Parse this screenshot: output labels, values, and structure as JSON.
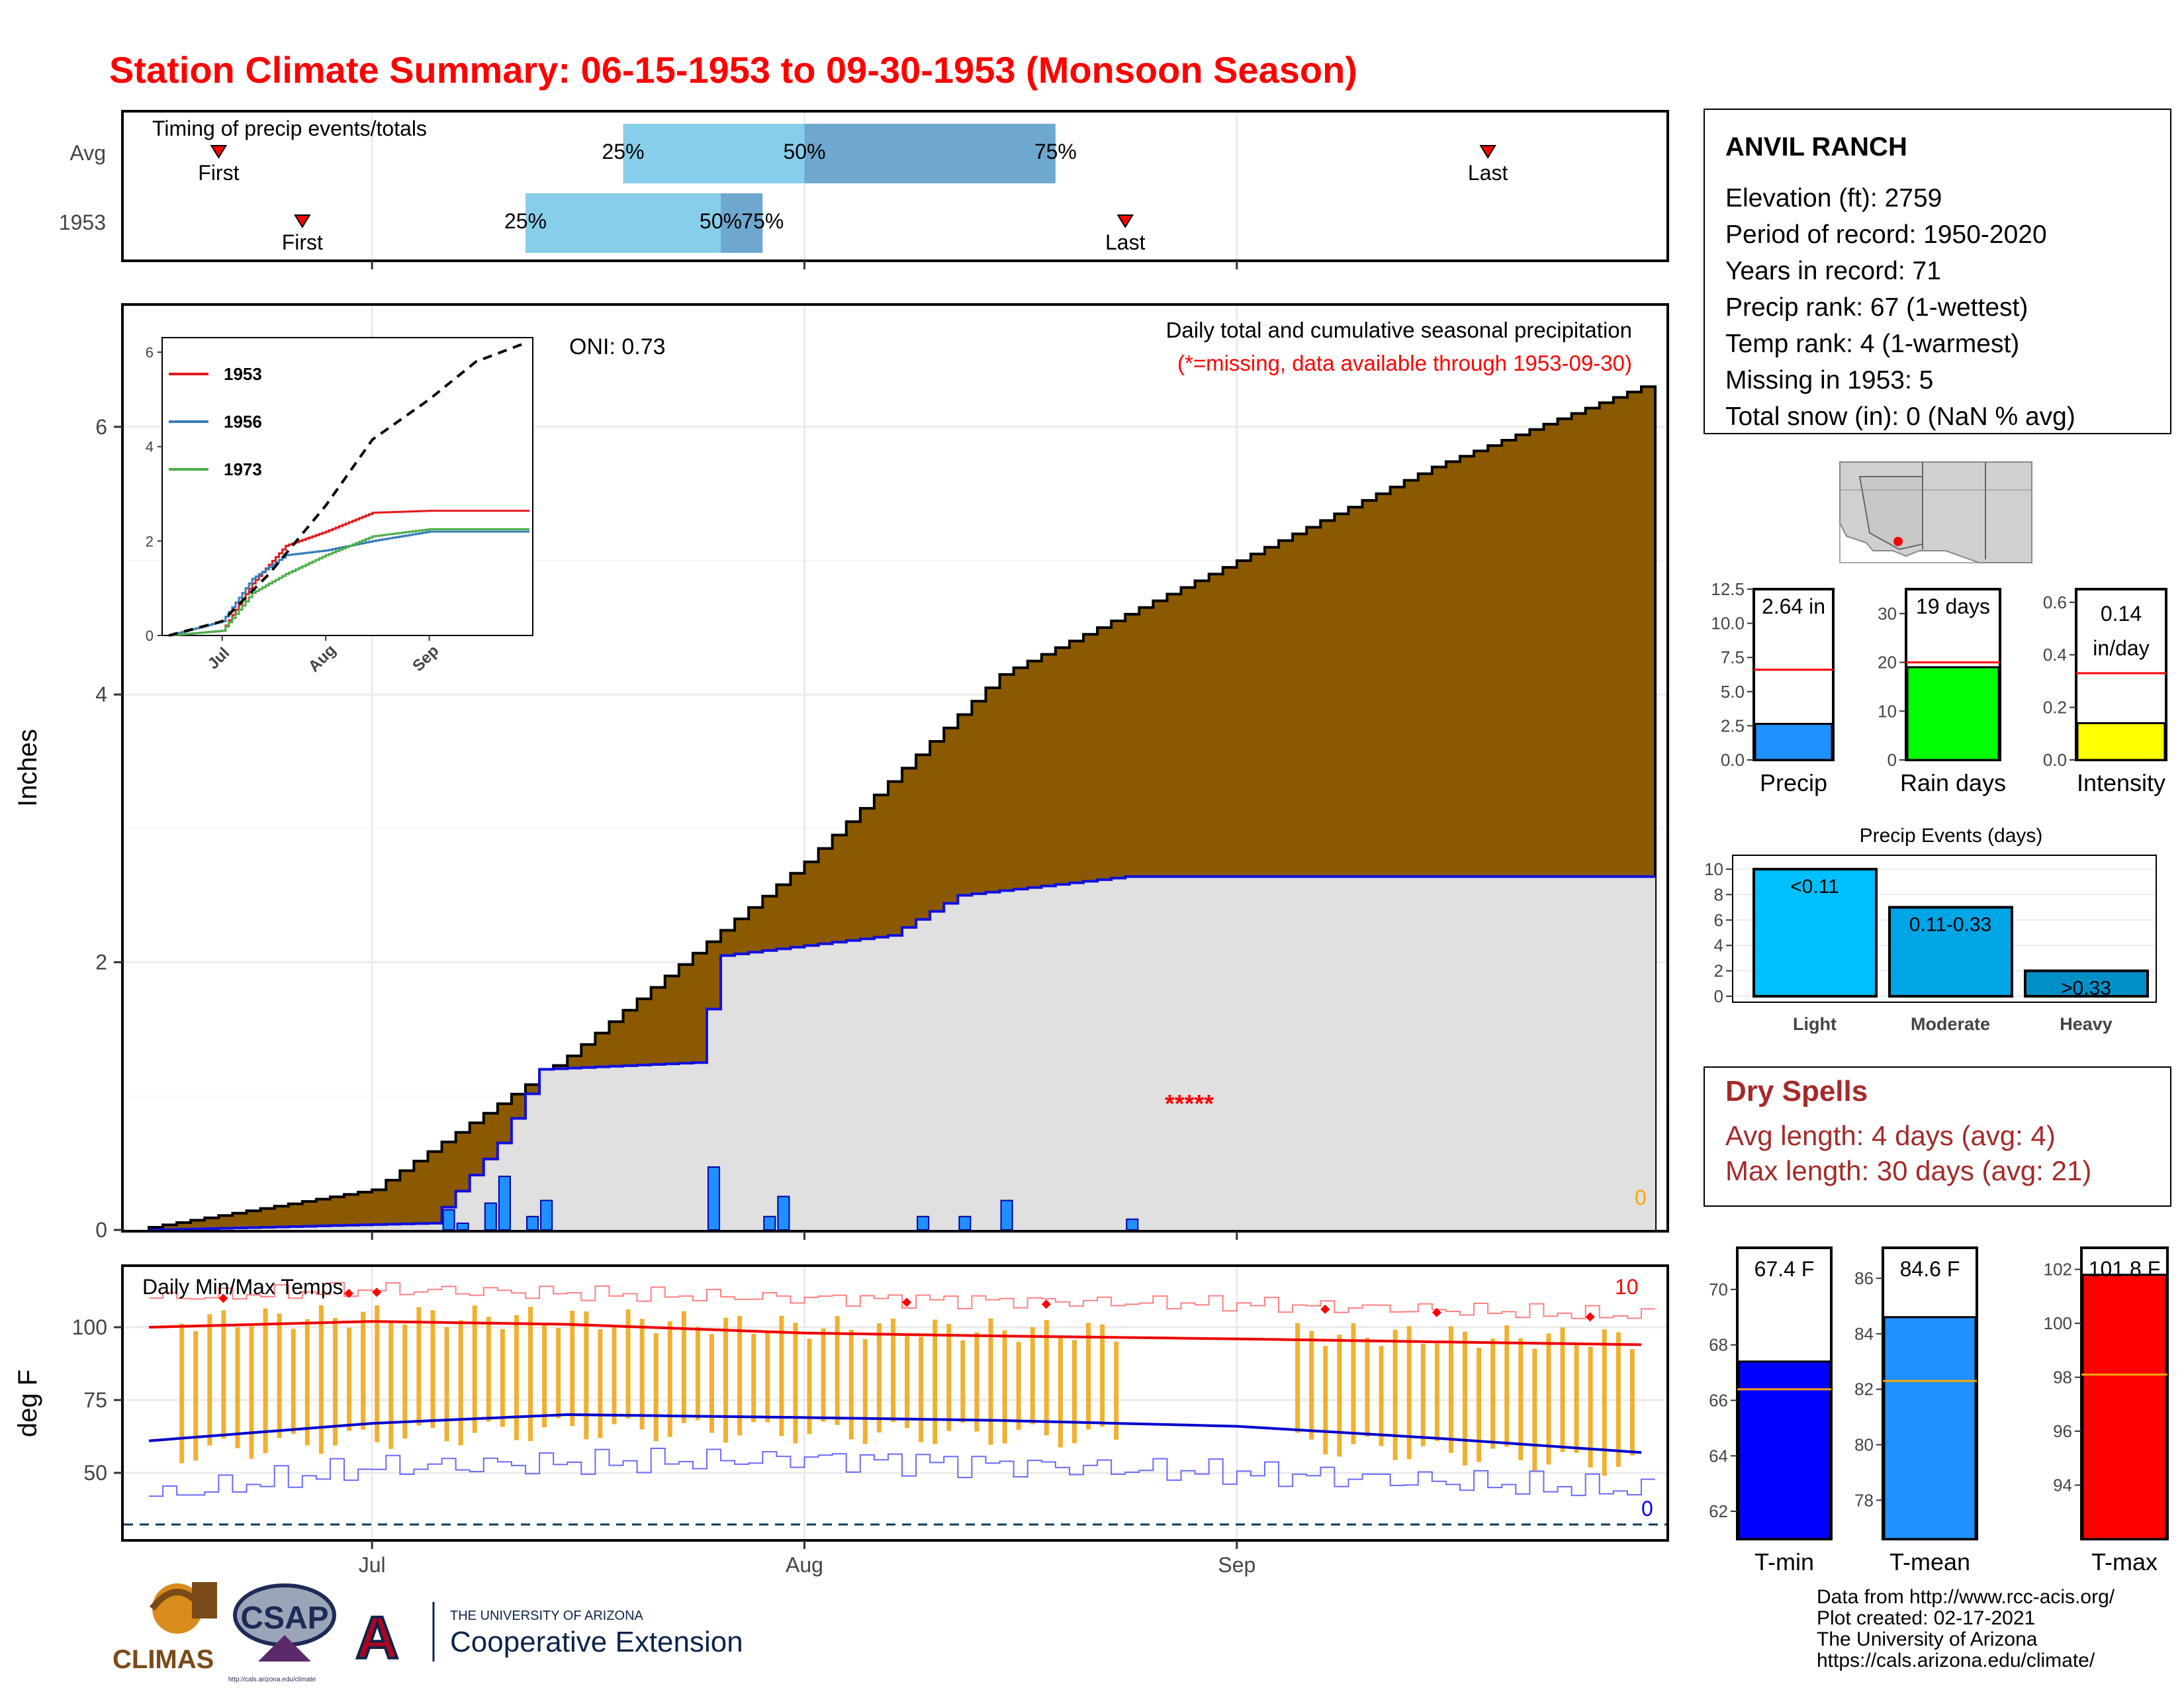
{
  "title": "Station Climate Summary: 06-15-1953 to 09-30-1953 (Monsoon Season)",
  "timing": {
    "label": "Timing of precip events/totals",
    "rows": [
      {
        "name": "Avg",
        "first": "Jun 20",
        "last": "Sep 19",
        "p25": "Jul 19",
        "p50": "Aug 1",
        "p75": "Aug 19"
      },
      {
        "name": "1953",
        "first": "Jun 26",
        "last": "Aug 24",
        "p25": "Jul 12",
        "p50": "Jul 26",
        "p75": "Jul 29"
      }
    ],
    "labels": {
      "first": "First",
      "last": "Last",
      "p25": "25%",
      "p50": "50%",
      "p75": "75%"
    }
  },
  "main_chart": {
    "ylabel": "Inches",
    "oni": "ONI: 0.73",
    "note": "Daily total and cumulative seasonal precipitation",
    "note_missing": "(*=missing, data available through 1953-09-30)",
    "missing_marker": "*****",
    "count_label": "0",
    "colors": {
      "avg_fill": "#8B5A00",
      "obs_fill": "#e0e0e0",
      "obs_line": "#1010e0",
      "daily_bar": "#1e90ff"
    }
  },
  "inset": {
    "legend": [
      "1953",
      "1956",
      "1973"
    ],
    "colors": {
      "1953": "#e41a1c",
      "1956": "#377eb8",
      "1973": "#4daf4a"
    }
  },
  "temp_chart": {
    "label": "Daily Min/Max Temps",
    "ylabel": "deg F",
    "count_high": "10",
    "count_low": "0"
  },
  "x_ticks": [
    "Jul",
    "Aug",
    "Sep"
  ],
  "station": {
    "name": "ANVIL RANCH",
    "lines": [
      "Elevation (ft): 2759",
      "Period of record: 1950-2020",
      "Years in record: 71",
      "Precip rank: 67 (1-wettest)",
      "Temp rank: 4 (1-warmest)",
      "Missing in 1953: 5",
      "Total snow (in): 0 (NaN % avg)"
    ]
  },
  "mini_bars": [
    {
      "label": "Precip",
      "value_text": "2.64 in",
      "value": 2.64,
      "avg": 6.6,
      "ylim": [
        0,
        12.5
      ],
      "ticks": [
        "0.0",
        "2.5",
        "5.0",
        "7.5",
        "10.0",
        "12.5"
      ],
      "color": "#1e90ff"
    },
    {
      "label": "Rain days",
      "value_text": "19 days",
      "value": 19,
      "avg": 20,
      "ylim": [
        0,
        35
      ],
      "ticks": [
        "0",
        "10",
        "20",
        "30"
      ],
      "color": "#00ff00"
    },
    {
      "label": "Intensity",
      "value_text": "0.14 in/day",
      "value_line1": "0.14",
      "value_line2": "in/day",
      "value": 0.14,
      "avg": 0.33,
      "ylim": [
        0,
        0.65
      ],
      "ticks": [
        "0.0",
        "0.2",
        "0.4",
        "0.6"
      ],
      "color": "#ffff00"
    }
  ],
  "precip_events": {
    "title": "Precip Events (days)",
    "categories": [
      "Light",
      "Moderate",
      "Heavy"
    ],
    "bin_labels": [
      "<0.11",
      "0.11-0.33",
      ">0.33"
    ],
    "values": [
      10,
      7,
      2
    ],
    "colors": [
      "#00bfff",
      "#00a5e6",
      "#0090c8"
    ],
    "ticks": [
      "0",
      "2",
      "4",
      "6",
      "8",
      "10"
    ]
  },
  "dry_spells": {
    "title": "Dry Spells",
    "avg": "Avg length: 4 days (avg: 4)",
    "max": "Max length: 30 days (avg: 21)"
  },
  "temp_bars": [
    {
      "label": "T-min",
      "value_text": "67.4 F",
      "value": 67.4,
      "avg": 66.4,
      "ylim": [
        61,
        71.5
      ],
      "ticks": [
        "62",
        "64",
        "66",
        "68",
        "70"
      ],
      "color": "#0000ff"
    },
    {
      "label": "T-mean",
      "value_text": "84.6 F",
      "value": 84.6,
      "avg": 82.3,
      "ylim": [
        76.6,
        87.1
      ],
      "ticks": [
        "78",
        "80",
        "82",
        "84",
        "86"
      ],
      "color": "#1e90ff"
    },
    {
      "label": "T-max",
      "value_text": "101.8 F",
      "value": 101.8,
      "avg": 98.1,
      "ylim": [
        92,
        102.8
      ],
      "ticks": [
        "94",
        "96",
        "98",
        "100",
        "102"
      ],
      "color": "#ff0000"
    }
  ],
  "footer": {
    "lines": [
      "Data from http://www.rcc-acis.org/",
      "Plot created: 02-17-2021",
      "The University of Arizona",
      "https://cals.arizona.edu/climate/"
    ],
    "logo_climas": "CLIMAS",
    "logo_csap": "CSAP",
    "logo_csap_url": "http://cals.arizona.edu/climate",
    "logo_ua_small": "THE UNIVERSITY OF ARIZONA",
    "logo_ua_big": "Cooperative Extension",
    "logo_ua_letter": "A"
  },
  "chart_data": [
    {
      "type": "area",
      "title": "Daily total and cumulative seasonal precipitation",
      "xlabel": "",
      "ylabel": "Inches",
      "ylim": [
        0,
        7
      ],
      "x_range": [
        "1953-06-15",
        "1953-09-30"
      ],
      "series": [
        {
          "name": "cumulative average",
          "x": [
            "06-15",
            "07-01",
            "07-15",
            "08-01",
            "08-15",
            "09-01",
            "09-15",
            "09-30"
          ],
          "values": [
            0.02,
            0.3,
            1.3,
            2.75,
            4.15,
            5.0,
            5.7,
            6.3
          ]
        },
        {
          "name": "cumulative 1953",
          "x": [
            "06-15",
            "07-05",
            "07-10",
            "07-13",
            "07-24",
            "07-26",
            "08-07",
            "08-12",
            "08-24",
            "09-30"
          ],
          "values": [
            0,
            0.05,
            0.65,
            1.2,
            1.25,
            2.05,
            2.2,
            2.5,
            2.64,
            2.64
          ]
        },
        {
          "name": "daily 1953",
          "x": [
            "07-06",
            "07-07",
            "07-09",
            "07-10",
            "07-12",
            "07-13",
            "07-25",
            "07-29",
            "07-30",
            "08-09",
            "08-12",
            "08-15",
            "08-24"
          ],
          "values": [
            0.15,
            0.05,
            0.2,
            0.4,
            0.1,
            0.22,
            0.47,
            0.1,
            0.25,
            0.1,
            0.1,
            0.22,
            0.08
          ]
        }
      ]
    },
    {
      "type": "line",
      "title": "",
      "xlabel": "",
      "ylabel": "",
      "ylim": [
        0,
        6.2
      ],
      "series": [
        {
          "name": "1953",
          "x": [
            "06-15",
            "07-01",
            "07-10",
            "07-20",
            "08-01",
            "08-15",
            "09-01",
            "09-30"
          ],
          "values": [
            0,
            0.1,
            1.1,
            1.9,
            2.2,
            2.6,
            2.64,
            2.64
          ]
        },
        {
          "name": "1956",
          "x": [
            "06-15",
            "07-01",
            "07-10",
            "07-20",
            "08-01",
            "08-15",
            "09-01",
            "09-30"
          ],
          "values": [
            0,
            0.3,
            1.2,
            1.7,
            1.8,
            2.0,
            2.2,
            2.2
          ]
        },
        {
          "name": "1973",
          "x": [
            "06-15",
            "07-01",
            "07-10",
            "07-20",
            "08-01",
            "08-15",
            "09-01",
            "09-30"
          ],
          "values": [
            0,
            0.1,
            0.9,
            1.3,
            1.7,
            2.1,
            2.25,
            2.25
          ]
        },
        {
          "name": "average",
          "x": [
            "06-15",
            "07-01",
            "07-15",
            "08-01",
            "08-15",
            "09-01",
            "09-15",
            "09-30"
          ],
          "values": [
            0,
            0.3,
            1.3,
            2.75,
            4.15,
            5.0,
            5.8,
            6.2
          ]
        }
      ]
    },
    {
      "type": "line",
      "title": "Daily Min/Max Temps",
      "xlabel": "",
      "ylabel": "deg F",
      "ylim": [
        32,
        120
      ],
      "series": [
        {
          "name": "avg max",
          "x": [
            "06-15",
            "07-01",
            "07-15",
            "08-01",
            "08-15",
            "09-01",
            "09-15",
            "09-30"
          ],
          "values": [
            100,
            102,
            101,
            98,
            97,
            96,
            95,
            94
          ]
        },
        {
          "name": "avg min",
          "x": [
            "06-15",
            "07-01",
            "07-15",
            "08-01",
            "08-15",
            "09-01",
            "09-15",
            "09-30"
          ],
          "values": [
            61,
            67,
            70,
            69,
            68,
            66,
            62,
            57
          ]
        },
        {
          "name": "record max",
          "x": [
            "06-15",
            "07-01",
            "08-01",
            "09-01",
            "09-30"
          ],
          "values": [
            110,
            113,
            110,
            108,
            104
          ]
        },
        {
          "name": "record min",
          "x": [
            "06-15",
            "07-01",
            "08-01",
            "09-01",
            "09-30"
          ],
          "values": [
            42,
            52,
            55,
            50,
            44
          ]
        }
      ]
    },
    {
      "type": "bar",
      "title": "Precip Events (days)",
      "categories": [
        "Light",
        "Moderate",
        "Heavy"
      ],
      "values": [
        10,
        7,
        2
      ],
      "ylim": [
        0,
        10.5
      ]
    }
  ]
}
